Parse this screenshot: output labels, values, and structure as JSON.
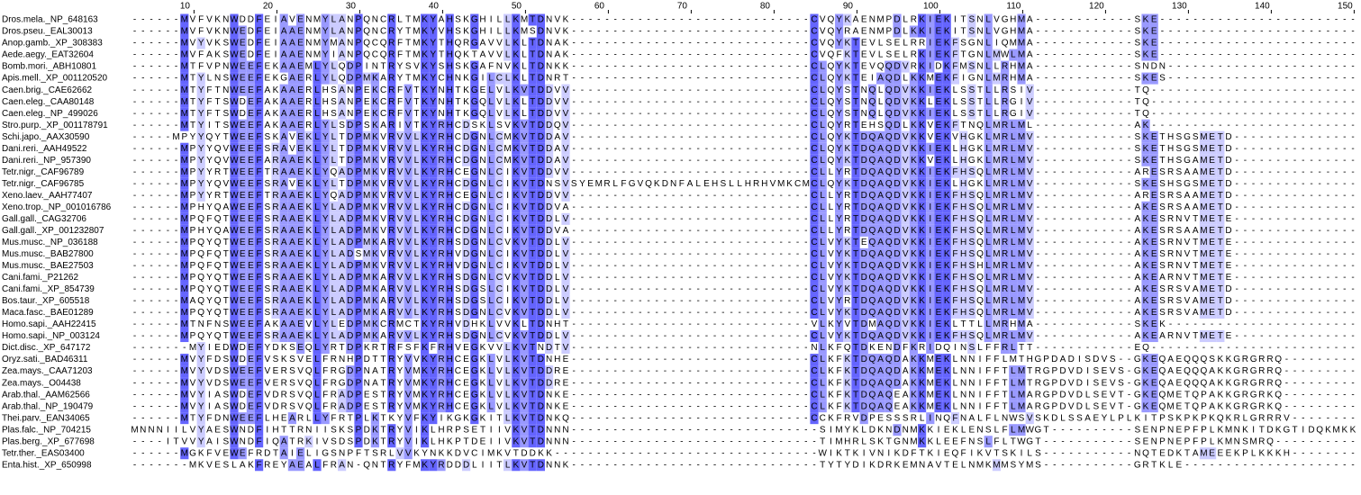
{
  "ruler": [
    10,
    20,
    30,
    40,
    50,
    60,
    70,
    80,
    90,
    100,
    110,
    120,
    130,
    140,
    150
  ],
  "rows": [
    {
      "name": "Dros.mela._NP_648163",
      "sequence": "------MVFVKNWDDFEIAVENMYLANPQNCRLTMKYAHSKGHILLKMTDNVK-----------------------------CVQYKAENMPDLRKIEKITSNLVGHMA------------SKE------------------------"
    },
    {
      "name": "Dros.pseu._EAL30013",
      "sequence": "------MVFVKNWEDFEIAAENMYLANPQNCRYTMKYVHSKGHILLKMSDNVK-----------------------------CVQYRAENMPDLKKIEKITSNLVGHMA------------SKE------------------------"
    },
    {
      "name": "Anop.gamb._XP_308383",
      "sequence": "------MVYVKSWEDFEIAAENMYMANPQCQRFTMKYTHQRGAVVLKLTDNAK-----------------------------CVQYKTEVLSELRRIEKFSGNLIQMMA------------SKE------------------------"
    },
    {
      "name": "Aede.aegy._EAT32604",
      "sequence": "------MVFAKSWEDFEIAAENMYIANPQCQRFTMKYTHQKTAVVLKLTDNAK-----------------------------CVQFKTEVLSELRKIEKFTGNLMWLMA------------SKE------------------------"
    },
    {
      "name": "Bomb.mori._ABH10801",
      "sequence": "------MTFVPNWEEFEKAAEMLYLQDPINTRYSVKYSHSKGAFNVKLTDNKK-----------------------------CLQYKTEVQQDVRKIDKFMSNLLRHMA------------SNDN-----------------------"
    },
    {
      "name": "Apis.mell._XP_001120520",
      "sequence": "------MTYLNSWEEFEKGAERLYLQDPMKARYTMKYCHNKGILCLKLTDNRT-----------------------------CLQYKTEIAQDLKKMEKFIGNLMRHMA------------SKES-----------------------"
    },
    {
      "name": "Caen.brig._CAE62662",
      "sequence": "------MTYFTNWEEFAKAAERLHSANPEKCRFVTKYNHTKGELVLKVTDDVV-----------------------------CLQYSTNQLQDVKKIEKLSSTLLRSIV------------TQ-------------------------"
    },
    {
      "name": "Caen.eleg._CAA80148",
      "sequence": "------MTYFTSWDEFAKAAERLHSANPEKCRFVTKYNHTKGQLVLKLTDDVV-----------------------------CLQYSTNQLQDVKKLEKLSSTLLRGIV------------TQ-------------------------"
    },
    {
      "name": "Caen.eleg._NP_499026",
      "sequence": "------MTYFTSWDEFAKAAERLHSANPEKCRFVTKYNHTKGQLVLKLTDDVV-----------------------------CLQYSTNQLQDVKKIEKLSSTLLRGIV------------TQ-------------------------"
    },
    {
      "name": "Stro.purp._XP_001178791",
      "sequence": "------MTYITSWEEFAKAAERLYLSDPSKARIVTKYRHCDSKLSVKVTDDQV-----------------------------CLQYRTEHSQDLKKVEKFTNQLMRLML------------AK-------------------------"
    },
    {
      "name": "Schi.japo._AAX30590",
      "sequence": "-----MPYYQYTWEEFSKAVEKLYLTDPMKVRVVLKYRHCDGNLCMKVTDDAV-----------------------------CLQYKTDQAQDVKKVEKVHGKLMRLMV------------SKETHSGSMETD---------------"
    },
    {
      "name": "Dani.reri._AAH49522",
      "sequence": "------MPYYQVWEEFSRAVEKLYLTDPMKVRVVLKYRHCDGNLCMKVTDDAV-----------------------------CLQYKTDQAQDVKKIEKLHGKLMRLMV------------SKETHSGSMETD---------------"
    },
    {
      "name": "Dani.reri._NP_957390",
      "sequence": "------MPYYQVWEEFARAAEKLYLTDPMKVRVVLKYRHCDGNLCMKVTDDAV-----------------------------CLQYKTDQAQDVKKVEKLHGKLMRLMV------------SKETHSGAMETD---------------"
    },
    {
      "name": "Tetr.nigr._CAF96789",
      "sequence": "------MPYYRTWEEFTRAAEKLYQADPMKVRVVLKYRHCEGNLCIKVTDDVV-----------------------------CLLYRTDQAQDVKKIEKFHSQLMRLMV------------ARESRSAAMETD---------------"
    },
    {
      "name": "Tetr.nigr._CAF96785",
      "sequence": "------MPYYQVWEEFSRAVEKLYLTDPMKVRVVLKYRHCDGNLCIKVTDNSVSYEMRLFGVQKDNFALEHSLLHRHVMKCMCLQYKTDQAQDVKKIEKLHGKLMRLMV------------SKESHSGSMETD---------------"
    },
    {
      "name": "Xeno.laev._AAH77407",
      "sequence": "------MPYYRTWEEFTRAAEKLYQADPMKVRVVLKYRHCEGNLCIKVTDDVV-----------------------------CLLYRTDQAQDVKKIEKFHSQLMRLMV------------ARESRSAAMETD---------------"
    },
    {
      "name": "Xeno.trop._NP_001016786",
      "sequence": "------MPHYQAWEEFSRAAEKLYLADPMKVRVVLKYRHCDGNLCIKVTDDVA-----------------------------CLLYRTDQAQDVKKIEKFHSQLMRLMV------------AKESRSAAMETD---------------"
    },
    {
      "name": "Gall.gall._CAG32706",
      "sequence": "------MPQFQTWEEFSRAAEKLYLADPMKVRVVLKYRHCDGNLCIKVTDDLV-----------------------------CLLYRTDQAQDVKKIEKFHSQLMRLMV------------AKESRNVTMETE---------------"
    },
    {
      "name": "Gall.gall._XP_001232807",
      "sequence": "------MPHYQAWEEFSRAAEKLYLADPMKVRVVLKYRHCDGNLCIKVTDDVA-----------------------------CLLYRTDQAQDVKKIEKFHSQLMRLMV------------AKESRSAAMETD---------------"
    },
    {
      "name": "Mus.musc._NP_036188",
      "sequence": "------MPQYQTWEEFSRAAEKLYLADPMKARVVLKYRHSDGNLCVKVTDDLV-----------------------------CLVYKTEQAQDVKKIEKFHSQLMRLMV------------AKESRNVTMETE---------------"
    },
    {
      "name": "Mus.musc._BAB27800",
      "sequence": "------MPQFQTWEEFSRAAEKLYLADSMKVRVVLKYRHVDGNLCIKVTDDLV-----------------------------CLVYKTDQAQDVKKIEKFHSQLMRLMV------------AKESRNVTMETE---------------"
    },
    {
      "name": "Mus.musc._BAE27503",
      "sequence": "------MPQFQTWEEFSRAAEKLYLADPMKVRVVLKYRHVDGNLCIKVTDDLV-----------------------------CLVYKTDQAQDVKKIEKFHSHLMRLMV------------AKESRNVTMETE---------------"
    },
    {
      "name": "Cani.fami._P21262",
      "sequence": "------MPQYQTWEEFSRAAEKLYLADPMKARVVLKYRHSDGNLCVKVTDDLV-----------------------------CLVYKTDQAQDVKKIEKFHSQLMRLMV------------AKEARNVTMETE---------------"
    },
    {
      "name": "Cani.fami._XP_854739",
      "sequence": "------MPQYQTWEEFSRAAEKLYLADPMKARVVLKYRHSDGSLCIKVTDDLV-----------------------------CLVYKTDQAQDVKKIEKFHSQLMRLMV------------AKESRSVAMETD---------------"
    },
    {
      "name": "Bos.taur._XP_605518",
      "sequence": "------MAQYQTWEEFSRAAEKLYLADPMKARVVLKYRHSDGSLCIKVTDDLV-----------------------------CLVYRTDQAQDVKKIEKFHSQLMRLMV------------AKESRSVAMETD---------------"
    },
    {
      "name": "Maca.fasc._BAE01289",
      "sequence": "------MPQYQTWEEFSRAAEKLYLADPMKARVVLKYRHSDGNLCVKVTDDLV-----------------------------CLVYKTDQAQDVKKIEKFHSQLMRLMV------------AKESRSVAMETD---------------"
    },
    {
      "name": "Homo.sapi._AAH22415",
      "sequence": "------MTNFNSWEEFAKAAEVLYLEDPMKCRMCTKYRHVDHKLVVKLTDNHT-----------------------------VLKYVTDMAQDVKKIEKLTTLLMRHMA------------SKEK-----------------------"
    },
    {
      "name": "Homo.sapi._NP_003124",
      "sequence": "------MPQYQTWEEFSRAAEKLYLADPMKARVVLKYRHSDGNLCVKVTDDLV-----------------------------CLVYKTDQAQDVKKIEKFHSQLMRLMV------------AKEARNVTMETE---------------"
    },
    {
      "name": "Dict.disc._XP_647172",
      "sequence": "-------MYIEDWDEFYDKSEQLYRTDPKRTRFSFKFRHVEGKVVLKVTNDTV-----------------------------NLKFQTDKENDFKRIDQINSLFFRLTT------------EQ-------------------------"
    },
    {
      "name": "Oryz.sati._BAD46311",
      "sequence": "------MVYFDSWDEFVSKSVELFRNHPDTTRYVVKYRHCEGKLVLKVTDNHE-----------------------------CLKFKTDQAQDAKKMEKLNNIFFLMTHGPDADISDVS--GKEQAEQQQSKKGRGRRQ---------"
    },
    {
      "name": "Zea.mays._CAA71203",
      "sequence": "------MVYVDSWEEFVERSVQLFRGDPNATRYVMKYRHCEGKLVLKVTDDRE-----------------------------CLKFKTDQAQDAKKMEKLNNIFFTLMTRGPDVDISEVS-GKEQAEQQQAKKGRGRRQ---------"
    },
    {
      "name": "Zea.mays._O04438",
      "sequence": "------MVYVDSWEEFVERSVQLFRGDPNATRYVMKYRHCEGKLVLKVTDDRE-----------------------------CLKFKTDQAQDAKKMEKLNNIFFTLMTRGPDVDISEVS-GKEQAEQQQAKKGRGRRQ---------"
    },
    {
      "name": "Arab.thal._AAM62566",
      "sequence": "------MVYIASWDEFVDRSVQLFRADPESTRYVMKYRHCEGKLVLKVTDNKE-----------------------------CLKFKTDQAQEAKKMEKLNNIFFTLMARGPDVDLSEVT-GKEQMETQPAKKGRGRKQ---------"
    },
    {
      "name": "Arab.thal._NP_190479",
      "sequence": "------MVYIASWDEFVDRSVQLFRADPESTRYVMKYRHCEGKLVLKVTDNKE-----------------------------CLKFKTDQAQEAKKMEKLNNIFFTLMARGPDVDLSEVT-GKEQMETQPAKKGRGRKQ---------"
    },
    {
      "name": "Thei.parv._EAN34065",
      "sequence": "------MTYFDNWEEFLHEARLLYFRTPLKTKYVFKYIKGKGKITLKVTDNKQ-----------------------------CCKFRVDPESSSRLINQFNALFLNWSVSKDLSSAEYLPLKITPSKPKPKQKRLGRRRV--------"
    },
    {
      "name": "Plas.falc._NP_704215",
      "sequence": "MNNNIILVYAESWNDFIHTTRNIISKSPDKTRYVIKLHRPSETIIVKVTDNNN------------------------------SIMYKLDKNDNMKKIEKLENSLFLMWGT----------SENPNEPFPLKMNKITDKGTIDQKMKK"
    },
    {
      "name": "Plas.berg._XP_677698",
      "sequence": "----ITVVYAISWNDFIQATRKIVSDSPDKTRYVIKLHKPTDEIIVKVTDNNN------------------------------TIMHRLSKTGNMKKLEEFNSLFLTWGT-----------SENPNEPFPLKMNSMRQ----------"
    },
    {
      "name": "Tetr.ther._EAS03400",
      "sequence": "------MGKFVEWEFRDTAIELIGSNPFTSRLVVKYNKKDVCIMKVTDDKK--------------------------------WIKTKIVNIKDFTKIEQFIKVTSKILS-----------NQTEDKTAMEEEKPLKKKH--------"
    },
    {
      "name": "Enta.hist._XP_650998",
      "sequence": "-------MKVESLAKFREYAEALFRAN-QNTRYFMKYRDDDLIITLKVTDNNK------------------------------TYTYDIKDRKEMNAVTELNMKMMSYMS-----------GRTKLE---------------------"
    }
  ]
}
